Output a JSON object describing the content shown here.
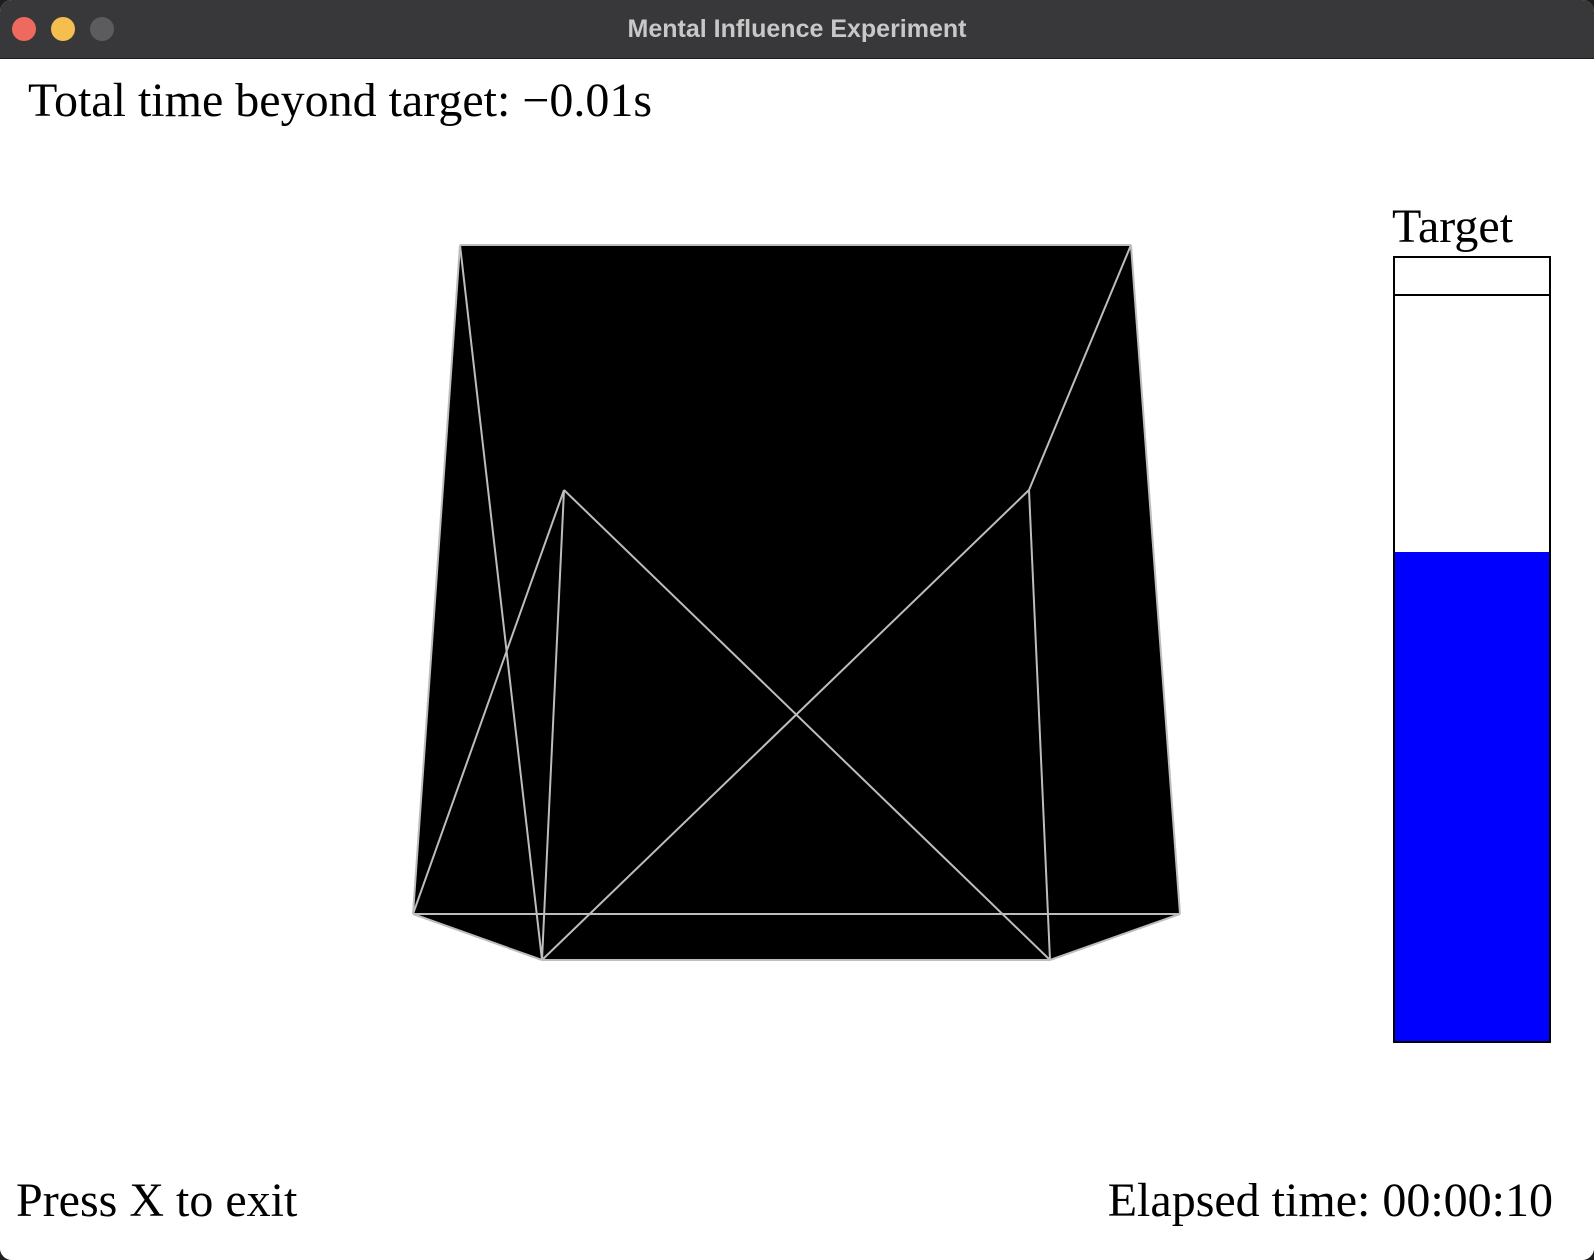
{
  "window": {
    "title": "Mental Influence Experiment"
  },
  "status": {
    "total_time_beyond_target": "Total time beyond target: −0.01s",
    "exit_hint": "Press X to exit",
    "elapsed_time": "Elapsed time: 00:00:10"
  },
  "meter": {
    "label": "Target",
    "level": 0.625,
    "target_level": 0.953,
    "fill_color": "#0000ff"
  },
  "colors": {
    "shape_fill": "#000000",
    "shape_edges": "#bdbdbd"
  }
}
